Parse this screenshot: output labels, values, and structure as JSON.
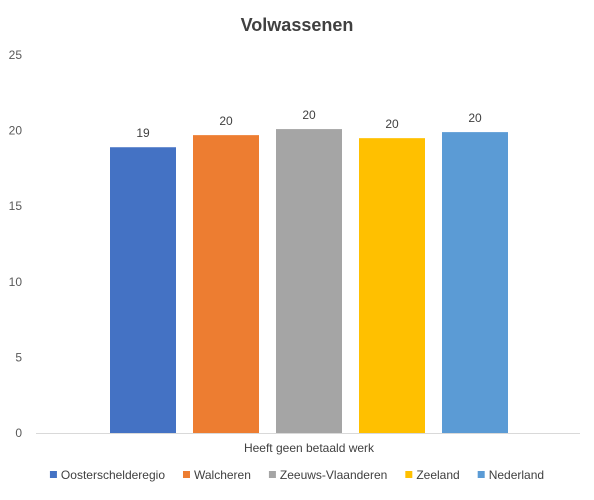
{
  "chart_data": {
    "type": "bar",
    "title": "Volwassenen",
    "categories": [
      "Heeft geen betaald werk"
    ],
    "series": [
      {
        "name": "Oosterschelderegio",
        "values": [
          18.9
        ],
        "label": "19",
        "color": "#4472C4"
      },
      {
        "name": "Walcheren",
        "values": [
          19.7
        ],
        "label": "20",
        "color": "#ED7D31"
      },
      {
        "name": "Zeeuws-Vlaanderen",
        "values": [
          20.1
        ],
        "label": "20",
        "color": "#A5A5A5"
      },
      {
        "name": "Zeeland",
        "values": [
          19.5
        ],
        "label": "20",
        "color": "#FFC000"
      },
      {
        "name": "Nederland",
        "values": [
          19.9
        ],
        "label": "20",
        "color": "#5B9BD5"
      }
    ],
    "ylim": [
      0,
      25
    ],
    "yticks": [
      "0",
      "5",
      "10",
      "15",
      "20",
      "25"
    ],
    "grid": false,
    "legend_position": "bottom"
  }
}
